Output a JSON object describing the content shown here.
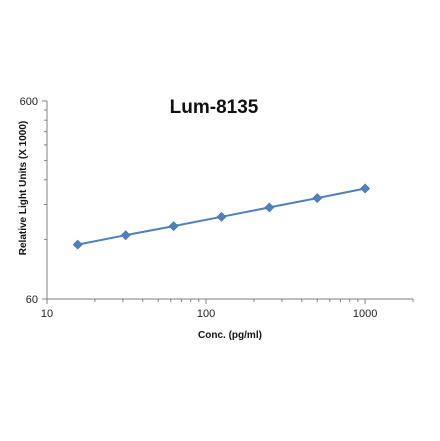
{
  "chart_data": {
    "type": "line",
    "title": "Lum-8135",
    "xlabel": "Conc. (pg/ml)",
    "ylabel": "Relative Light Units (X 1000)",
    "xscale": "log",
    "yscale": "log",
    "xlim": [
      10,
      2000
    ],
    "ylim": [
      60,
      600
    ],
    "xticks": [
      "10",
      "100",
      "1000"
    ],
    "yticks": [
      "60",
      "600"
    ],
    "grid": false,
    "legend": "none",
    "series": [
      {
        "x": [
          15.6,
          31.25,
          62.5,
          125,
          250,
          500,
          1000
        ],
        "y": [
          113,
          126,
          140,
          156,
          174,
          194,
          217
        ]
      }
    ],
    "colors": {
      "line": "#4f81bd",
      "marker": "#4f81bd",
      "axis": "#808080"
    }
  }
}
